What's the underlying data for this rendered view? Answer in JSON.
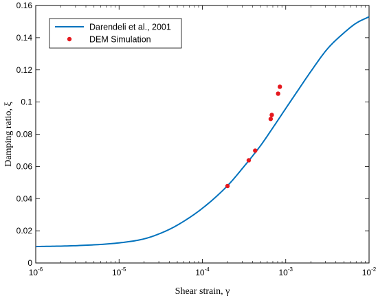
{
  "chart_data": {
    "type": "line",
    "title": "",
    "xlabel": "Shear strain, γ",
    "ylabel": "Damping ratio, ξ",
    "xscale": "log",
    "xlim": [
      1e-06,
      0.01
    ],
    "ylim": [
      0,
      0.16
    ],
    "x_ticks": [
      {
        "base": "10",
        "exp": "-6",
        "value": 1e-06
      },
      {
        "base": "10",
        "exp": "-5",
        "value": 1e-05
      },
      {
        "base": "10",
        "exp": "-4",
        "value": 0.0001
      },
      {
        "base": "10",
        "exp": "-3",
        "value": 0.001
      },
      {
        "base": "10",
        "exp": "-2",
        "value": 0.01
      }
    ],
    "y_ticks": [
      {
        "label": "0",
        "value": 0
      },
      {
        "label": "0.02",
        "value": 0.02
      },
      {
        "label": "0.04",
        "value": 0.04
      },
      {
        "label": "0.06",
        "value": 0.06
      },
      {
        "label": "0.08",
        "value": 0.08
      },
      {
        "label": "0.1",
        "value": 0.1
      },
      {
        "label": "0.12",
        "value": 0.12
      },
      {
        "label": "0.14",
        "value": 0.14
      },
      {
        "label": "0.16",
        "value": 0.16
      }
    ],
    "grid": false,
    "legend": {
      "placement": "top-left"
    },
    "series": [
      {
        "name": "Darendeli et al., 2001",
        "kind": "line",
        "color": "#0072BD",
        "x": [
          1e-06,
          3.16e-06,
          1e-05,
          2e-05,
          3.16e-05,
          5e-05,
          0.0001,
          0.0002,
          0.000316,
          0.0005,
          0.0007,
          0.001,
          0.0015,
          0.002,
          0.00316,
          0.005,
          0.007,
          0.01
        ],
        "y": [
          0.0102,
          0.0108,
          0.0125,
          0.015,
          0.0185,
          0.0235,
          0.034,
          0.048,
          0.06,
          0.073,
          0.084,
          0.096,
          0.1095,
          0.119,
          0.133,
          0.143,
          0.149,
          0.153
        ]
      },
      {
        "name": "DEM Simulation",
        "kind": "scatter",
        "color": "#E5181E",
        "x": [
          0.0002,
          0.00036,
          0.00043,
          0.00066,
          0.00068,
          0.00081,
          0.00085
        ],
        "y": [
          0.0478,
          0.0638,
          0.0698,
          0.0895,
          0.092,
          0.1052,
          0.1095
        ]
      }
    ]
  }
}
